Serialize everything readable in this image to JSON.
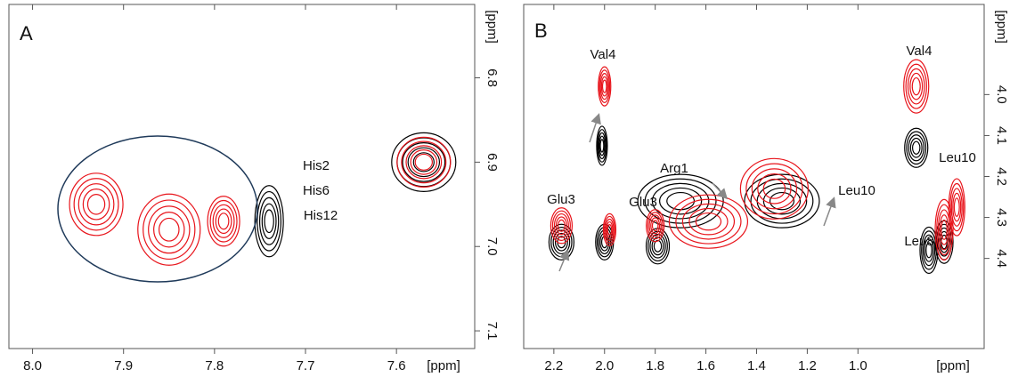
{
  "chart_data": [
    {
      "type": "contour",
      "label": "A",
      "xlabel": "[ppm]",
      "ylabel": "[ppm]",
      "xlim": [
        8.026,
        7.514
      ],
      "ylim": [
        6.713,
        7.121
      ],
      "xticks": [
        {
          "value": 8,
          "label": "8.0"
        },
        7.9,
        7.8,
        7.7,
        7.6
      ],
      "yticks": [
        6.8,
        6.9,
        {
          "value": 7,
          "label": "7.0"
        },
        7.1
      ],
      "annotations": [
        "His2",
        "His6",
        "His12"
      ],
      "series": [
        {
          "color": "#000000",
          "x": [
            7.57,
            7.74
          ],
          "values": [
            6.9,
            6.97
          ]
        },
        {
          "color": "#e8141b",
          "x": [
            7.57,
            7.79,
            7.93,
            7.85
          ],
          "values": [
            6.9,
            6.97,
            6.95,
            6.98
          ]
        }
      ]
    },
    {
      "type": "contour",
      "label": "B",
      "xlabel": "[ppm]",
      "ylabel": "[ppm]",
      "xlim": [
        2.319,
        0.502
      ],
      "ylim": [
        3.78,
        4.62
      ],
      "xticks": [
        2.2,
        {
          "value": 2,
          "label": "2.0"
        },
        1.8,
        1.6,
        1.4,
        1.2,
        {
          "value": 1,
          "label": "1.0"
        }
      ],
      "yticks": [
        {
          "value": 4,
          "label": "4.0"
        },
        4.1,
        4.2,
        4.3,
        4.4
      ],
      "annotations": [
        "Val4",
        "Arg1",
        "Glu3",
        "Glu3",
        "Val4",
        "Leu10",
        "Leu10",
        "Leu8"
      ],
      "series": [
        {
          "color": "#000000",
          "x": [
            2.17,
            2.0,
            1.79,
            2.01,
            1.7,
            1.3,
            0.77,
            0.72,
            0.66
          ],
          "values": [
            4.36,
            4.36,
            4.37,
            4.125,
            4.26,
            4.26,
            4.13,
            4.38,
            4.36
          ]
        },
        {
          "color": "#e8141b",
          "x": [
            2.17,
            1.98,
            1.8,
            2.0,
            1.59,
            1.33,
            0.77,
            0.66,
            0.61
          ],
          "values": [
            4.32,
            4.33,
            4.32,
            3.98,
            4.31,
            4.23,
            3.98,
            4.33,
            4.275
          ]
        }
      ]
    }
  ]
}
